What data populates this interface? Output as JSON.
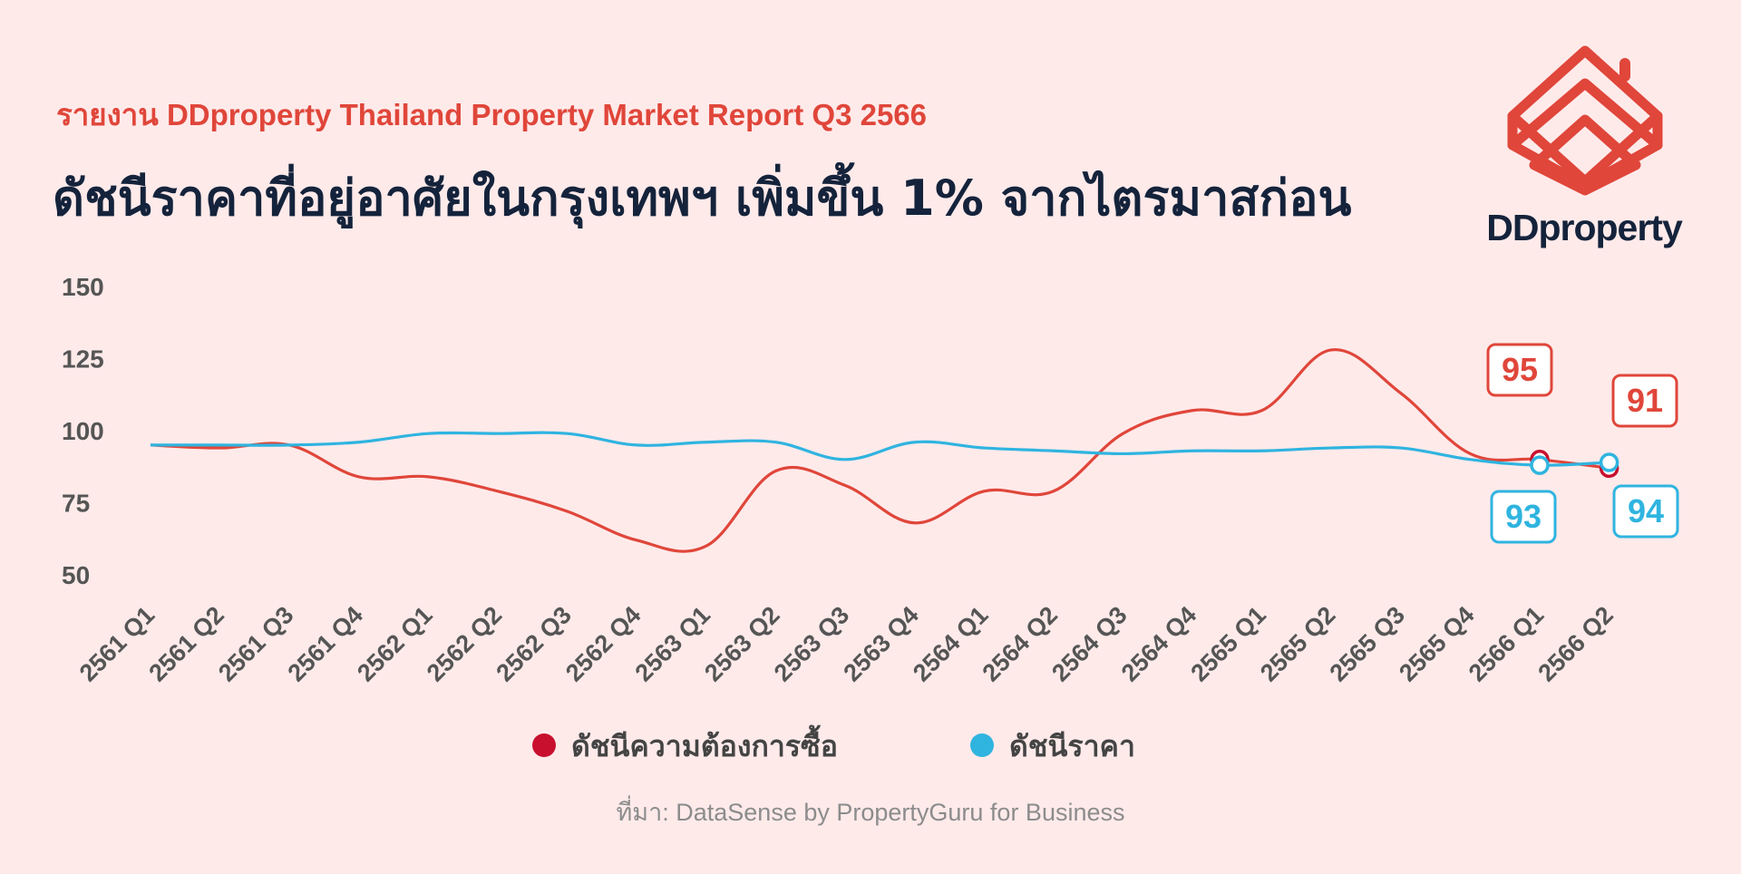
{
  "header": {
    "subtitle": "รายงาน DDproperty Thailand Property Market Report Q3 2566",
    "title": "ดัชนีราคาที่อยู่อาศัยในกรุงเทพฯ เพิ่มขึ้น 1% จากไตรมาสก่อน"
  },
  "brand": {
    "name": "DDproperty",
    "logo_icon": "ddproperty-house-logo-icon",
    "color": "#e0463a"
  },
  "source": "ที่มา: DataSense by PropertyGuru for Business",
  "chart_data": {
    "type": "line",
    "categories": [
      "2561 Q1",
      "2561 Q2",
      "2561 Q3",
      "2561 Q4",
      "2562 Q1",
      "2562 Q2",
      "2562 Q3",
      "2562 Q4",
      "2563 Q1",
      "2563 Q2",
      "2563 Q3",
      "2563 Q4",
      "2564 Q1",
      "2564 Q2",
      "2564 Q3",
      "2564 Q4",
      "2565 Q1",
      "2565 Q2",
      "2565 Q3",
      "2565 Q4",
      "2566 Q1",
      "2566 Q2"
    ],
    "ylim": [
      50,
      150
    ],
    "yticks": [
      50,
      75,
      100,
      125,
      150
    ],
    "grid": false,
    "legend": "bottom",
    "series": [
      {
        "name": "ดัชนีความต้องการซื้อ",
        "color": "#e0463a",
        "marker_color": "#c8102e",
        "values": [
          95,
          94,
          95,
          84,
          84,
          79,
          72,
          62,
          60,
          86,
          81,
          68,
          79,
          79,
          99,
          107,
          107,
          128,
          113,
          92,
          90,
          87
        ]
      },
      {
        "name": "ดัชนีราคา",
        "color": "#2fb4e0",
        "marker_color": "#2fb4e0",
        "values": [
          95,
          95,
          95,
          96,
          99,
          99,
          99,
          95,
          96,
          96,
          90,
          96,
          94,
          93,
          92,
          93,
          93,
          94,
          94,
          90,
          88,
          89
        ]
      }
    ],
    "annotations": [
      {
        "text": "95",
        "series": 0,
        "color": "#e0463a"
      },
      {
        "text": "91",
        "series": 0,
        "color": "#e0463a"
      },
      {
        "text": "93",
        "series": 1,
        "color": "#2fb4e0"
      },
      {
        "text": "94",
        "series": 1,
        "color": "#2fb4e0"
      }
    ]
  }
}
